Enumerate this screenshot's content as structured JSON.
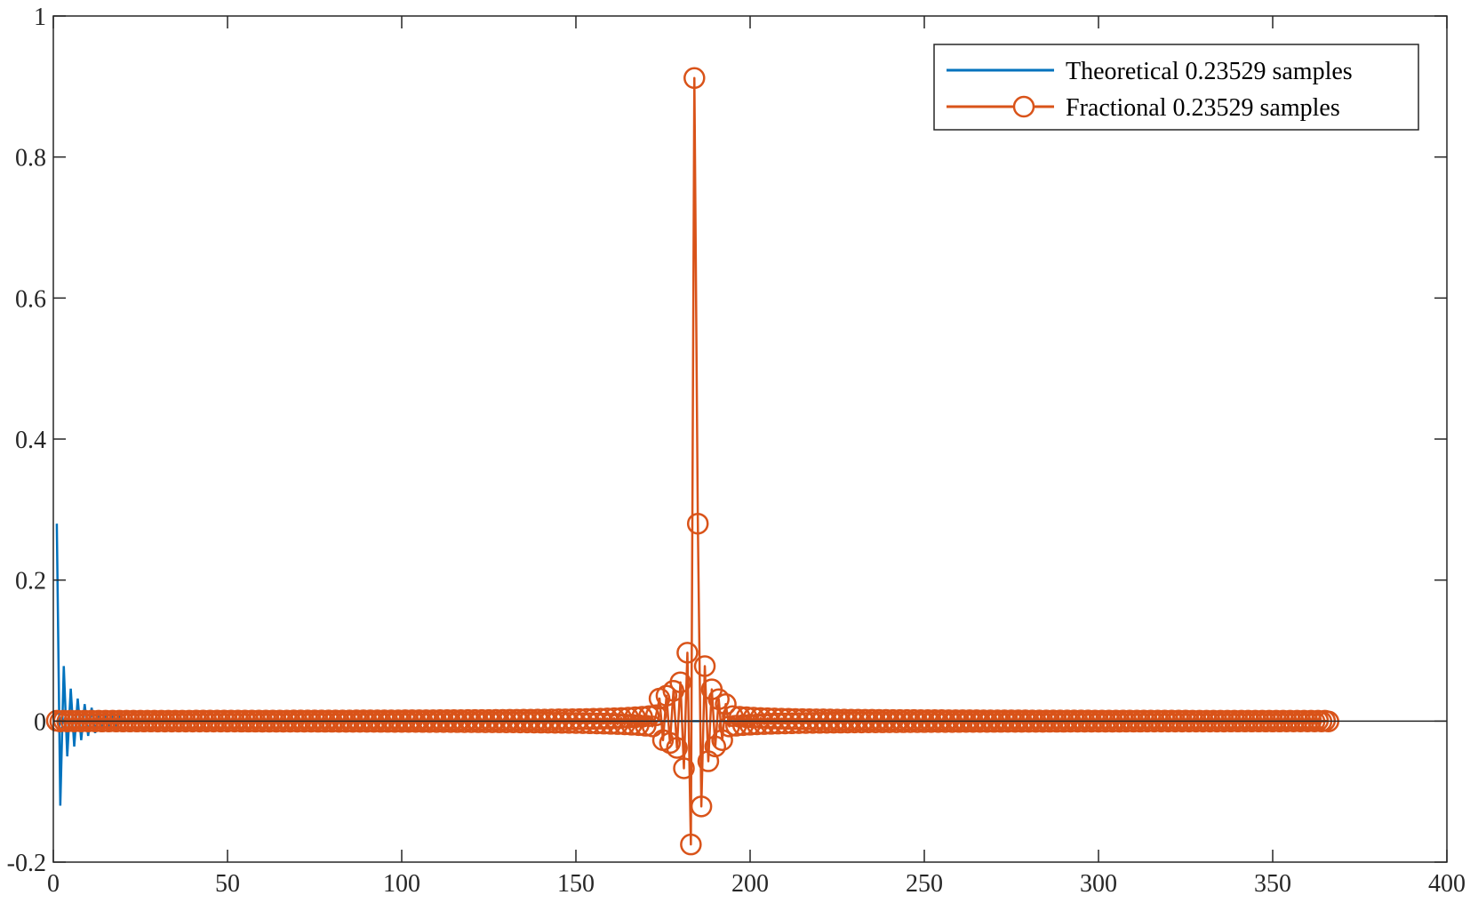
{
  "chart_data": {
    "type": "line",
    "title": "",
    "xlabel": "",
    "ylabel": "",
    "xlim": [
      0,
      400
    ],
    "ylim": [
      -0.2,
      1
    ],
    "x_ticks": [
      0,
      50,
      100,
      150,
      200,
      250,
      300,
      350,
      400
    ],
    "x_tick_labels": [
      "0",
      "50",
      "100",
      "150",
      "200",
      "250",
      "300",
      "350",
      "400"
    ],
    "y_ticks": [
      -0.2,
      0,
      0.2,
      0.4,
      0.6,
      0.8,
      1
    ],
    "y_tick_labels": [
      "-0.2",
      "0",
      "0.2",
      "0.4",
      "0.6",
      "0.8",
      "1"
    ],
    "grid": false,
    "box": true,
    "legend_position": "top-right",
    "series": [
      {
        "name": "Theoretical 0.23529 samples",
        "style": "line",
        "color": "#0072BD",
        "note_shape": "damped sinc starting at x=1",
        "points": [
          [
            1,
            0.28
          ],
          [
            2,
            -0.12
          ],
          [
            3,
            0.078
          ],
          [
            4,
            -0.05
          ],
          [
            5,
            0.046
          ],
          [
            6,
            -0.036
          ],
          [
            7,
            0.032
          ],
          [
            8,
            -0.027
          ],
          [
            9,
            0.024
          ],
          [
            10,
            -0.021
          ],
          [
            11,
            0.019
          ],
          [
            12,
            -0.017
          ],
          [
            13,
            0.015
          ],
          [
            14,
            -0.014
          ],
          [
            15,
            0.012
          ],
          [
            16,
            -0.011
          ],
          [
            17,
            0.01
          ],
          [
            18,
            -0.009
          ],
          [
            19,
            0.008
          ],
          [
            20,
            0
          ],
          [
            176,
            0
          ],
          [
            186,
            0
          ],
          [
            192,
            0
          ],
          [
            366,
            0
          ]
        ]
      },
      {
        "name": "Fractional 0.23529 samples",
        "style": "line-circle",
        "color": "#D95319",
        "center": 183,
        "x_range": [
          1,
          366
        ],
        "points": [
          [
            174,
            0.032
          ],
          [
            175,
            -0.027
          ],
          [
            176,
            0.036
          ],
          [
            177,
            -0.031
          ],
          [
            178,
            0.043
          ],
          [
            179,
            -0.038
          ],
          [
            180,
            0.055
          ],
          [
            181,
            -0.067
          ],
          [
            182,
            0.097
          ],
          [
            183,
            -0.175
          ],
          [
            184,
            0.912
          ],
          [
            185,
            0.28
          ],
          [
            186,
            -0.121
          ],
          [
            187,
            0.078
          ],
          [
            188,
            -0.057
          ],
          [
            189,
            0.045
          ],
          [
            190,
            -0.036
          ],
          [
            191,
            0.031
          ],
          [
            192,
            -0.027
          ],
          [
            193,
            0.024
          ]
        ]
      }
    ]
  }
}
